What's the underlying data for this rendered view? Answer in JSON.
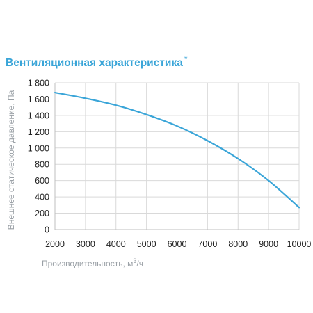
{
  "header": {
    "title": "Вентиляционная характеристика",
    "title_suffix": "*"
  },
  "colors": {
    "title": "#3aa5d8",
    "curve": "#3aa5d8",
    "grid": "#d9d9d9",
    "axis_labels": "#9aa0a6"
  },
  "chart_data": {
    "type": "line",
    "title": "Вентиляционная характеристика",
    "xlabel": "Производительность, м",
    "xlabel_superscript": "3",
    "xlabel_suffix": "/ч",
    "ylabel": "Внешнее статическое давление, Па",
    "xlim": [
      2000,
      10000
    ],
    "ylim": [
      0,
      1800
    ],
    "grid": true,
    "x_ticks": [
      2000,
      3000,
      4000,
      5000,
      6000,
      7000,
      8000,
      9000,
      10000
    ],
    "x_tick_labels": [
      "2000",
      "3000",
      "4000",
      "5000",
      "6000",
      "7000",
      "8000",
      "9000",
      "10000"
    ],
    "y_ticks": [
      0,
      200,
      400,
      600,
      800,
      1000,
      1200,
      1400,
      1600,
      1800
    ],
    "y_tick_labels": [
      "0",
      "200",
      "400",
      "600",
      "800",
      "1 000",
      "1 200",
      "1 400",
      "1 600",
      "1 800"
    ],
    "series": [
      {
        "x": [
          2000,
          3000,
          4000,
          5000,
          6000,
          7000,
          8000,
          9000,
          10000
        ],
        "y": [
          1680,
          1610,
          1525,
          1410,
          1270,
          1090,
          870,
          600,
          270
        ]
      }
    ]
  }
}
